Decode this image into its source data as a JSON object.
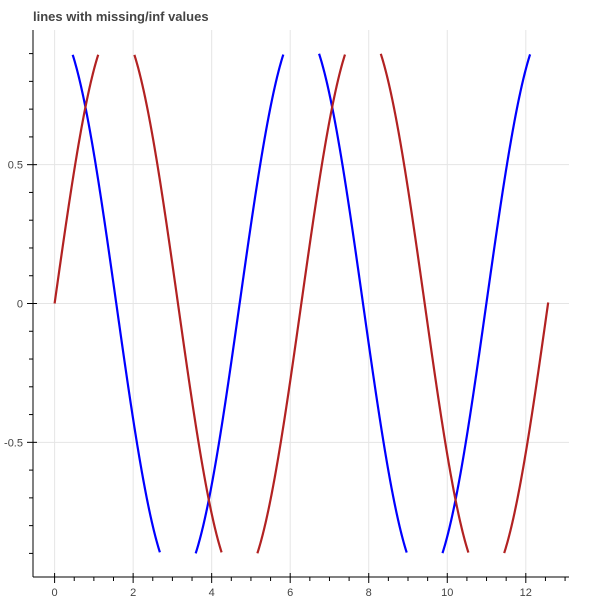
{
  "chart_data": {
    "type": "line",
    "title": "lines with missing/inf values",
    "xlabel": "",
    "ylabel": "",
    "xlim": [
      -0.55,
      13.1
    ],
    "ylim": [
      -0.985,
      0.985
    ],
    "grid": true,
    "legend": "none",
    "x_ticks": [
      0,
      2,
      4,
      6,
      8,
      10,
      12
    ],
    "x_tick_labels": [
      "0",
      "2",
      "4",
      "6",
      "8",
      "10",
      "12"
    ],
    "y_ticks": [
      -0.5,
      0,
      0.5
    ],
    "y_tick_labels": [
      "-0.5",
      "0",
      "0.5"
    ],
    "series": [
      {
        "color": "#0000ff",
        "function": "cos(x)",
        "x_range": [
          0,
          12.57
        ],
        "gaps": "missing where |cos(x)| > 0.9 (segments from x ≈ 0.52 to 2.65, 3.62 to 5.82, 6.75 to 8.93, 9.90 to 12.05)"
      },
      {
        "color": "#b22222",
        "function": "sin(x)",
        "x_range": [
          0,
          12.57
        ],
        "gaps": "missing where |sin(x)| > 0.9 (segments from x ≈ 0 to 1.09, 2.09 to 4.21, 5.19 to 7.37, 8.33 to 10.48, 11.48 to 12.57)"
      }
    ]
  },
  "colors": {
    "axis": "#000000",
    "grid": "#e5e5e5",
    "title": "#444444",
    "tick_label": "#444444"
  }
}
